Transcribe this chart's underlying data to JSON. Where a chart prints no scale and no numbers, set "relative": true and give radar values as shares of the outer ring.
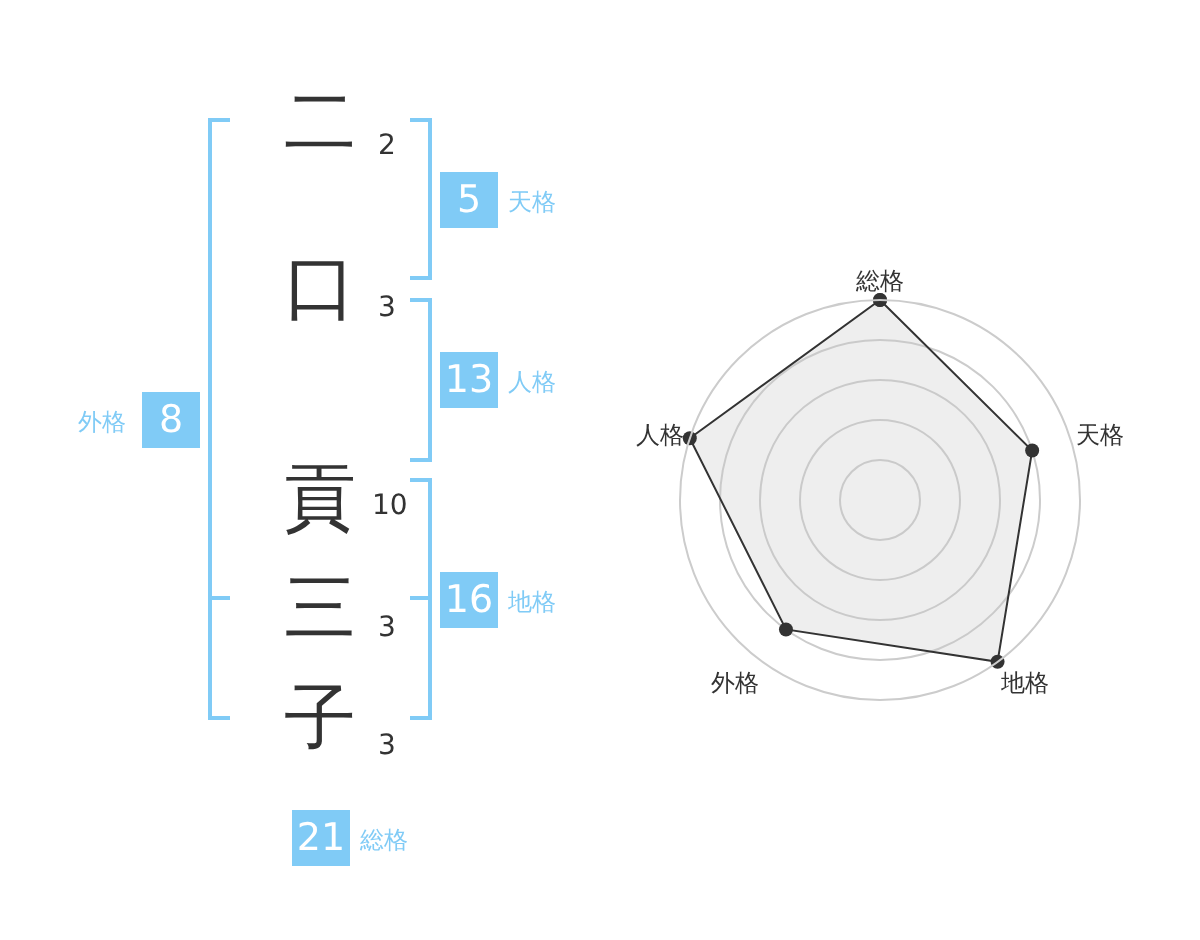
{
  "chart_data": [
    {
      "type": "other",
      "categories": [
        "二",
        "口",
        "貢",
        "三",
        "子"
      ],
      "values": [
        2,
        3,
        10,
        3,
        3
      ],
      "data_labels": true,
      "annotations": [
        "5",
        "天格",
        "13",
        "人格",
        "16",
        "地格",
        "8",
        "外格",
        "21",
        "総格"
      ]
    },
    {
      "type": "radar",
      "categories": [
        "総格",
        "天格",
        "地格",
        "外格",
        "人格"
      ],
      "relative": true,
      "grid": true,
      "marker": "circle",
      "legend": false,
      "series": [
        {
          "color": "#333333",
          "values": [
            1,
            0.8,
            1,
            0.8,
            1
          ]
        }
      ]
    }
  ]
}
